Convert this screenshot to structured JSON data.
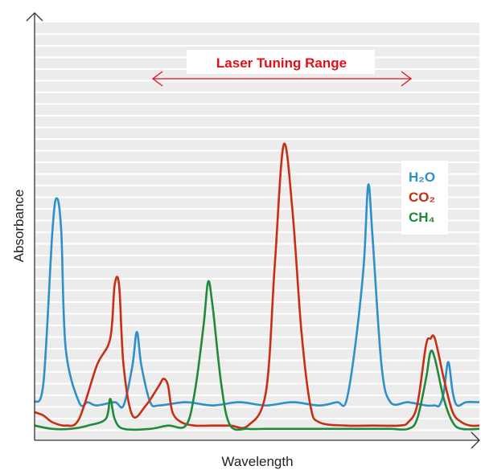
{
  "chart_data": {
    "type": "line",
    "xlabel": "Wavelength",
    "ylabel": "Absorbance",
    "annotation": "Laser Tuning Range",
    "annotation_color": "#e0101b",
    "grid": "horizontal-white-on-gray",
    "x_range": [
      0,
      100
    ],
    "y_range": [
      0,
      100
    ],
    "legend_placement": "right",
    "series": [
      {
        "formula": "H₂O",
        "color": "#2e8fc9",
        "values": [
          [
            0,
            9
          ],
          [
            2,
            15
          ],
          [
            4,
            60
          ],
          [
            5,
            70
          ],
          [
            6,
            60
          ],
          [
            7,
            25
          ],
          [
            10,
            9
          ],
          [
            12,
            9
          ],
          [
            14,
            8
          ],
          [
            18,
            9
          ],
          [
            20,
            8
          ],
          [
            22,
            20
          ],
          [
            23,
            30
          ],
          [
            24,
            20
          ],
          [
            26,
            9
          ],
          [
            28,
            8
          ],
          [
            34,
            9
          ],
          [
            40,
            8
          ],
          [
            46,
            9
          ],
          [
            52,
            8
          ],
          [
            58,
            9
          ],
          [
            64,
            8
          ],
          [
            68,
            9
          ],
          [
            70,
            9
          ],
          [
            72,
            25
          ],
          [
            74,
            50
          ],
          [
            75,
            74
          ],
          [
            76,
            58
          ],
          [
            78,
            20
          ],
          [
            80,
            9
          ],
          [
            84,
            9
          ],
          [
            88,
            8
          ],
          [
            90,
            8
          ],
          [
            91,
            8
          ],
          [
            92,
            12
          ],
          [
            93,
            21
          ],
          [
            94,
            12
          ],
          [
            95,
            8
          ],
          [
            97,
            9
          ],
          [
            100,
            9
          ]
        ]
      },
      {
        "formula": "CO₂",
        "color": "#c82e14",
        "values": [
          [
            0,
            6
          ],
          [
            2,
            5
          ],
          [
            4,
            3
          ],
          [
            7,
            2
          ],
          [
            10,
            4
          ],
          [
            14,
            20
          ],
          [
            17,
            28
          ],
          [
            18,
            44
          ],
          [
            19,
            44
          ],
          [
            20,
            20
          ],
          [
            22,
            5
          ],
          [
            25,
            8
          ],
          [
            28,
            14
          ],
          [
            29,
            16
          ],
          [
            30,
            14
          ],
          [
            31,
            6
          ],
          [
            33,
            3
          ],
          [
            36,
            2
          ],
          [
            40,
            2
          ],
          [
            44,
            2
          ],
          [
            48,
            2
          ],
          [
            52,
            12
          ],
          [
            54,
            50
          ],
          [
            56,
            86
          ],
          [
            58,
            66
          ],
          [
            60,
            30
          ],
          [
            62,
            8
          ],
          [
            64,
            3
          ],
          [
            70,
            2
          ],
          [
            76,
            2
          ],
          [
            82,
            2
          ],
          [
            84,
            3
          ],
          [
            86,
            8
          ],
          [
            88,
            26
          ],
          [
            89,
            28
          ],
          [
            90,
            28
          ],
          [
            92,
            16
          ],
          [
            94,
            6
          ],
          [
            96,
            3
          ],
          [
            98,
            2
          ],
          [
            100,
            2
          ]
        ]
      },
      {
        "formula": "CH₄",
        "color": "#1e8a3a",
        "values": [
          [
            0,
            2
          ],
          [
            4,
            1
          ],
          [
            8,
            1
          ],
          [
            12,
            2
          ],
          [
            16,
            4
          ],
          [
            17,
            10
          ],
          [
            18,
            4
          ],
          [
            20,
            1
          ],
          [
            26,
            1
          ],
          [
            30,
            2
          ],
          [
            34,
            2
          ],
          [
            36,
            12
          ],
          [
            38,
            32
          ],
          [
            39,
            45
          ],
          [
            40,
            38
          ],
          [
            42,
            14
          ],
          [
            44,
            2
          ],
          [
            48,
            1
          ],
          [
            52,
            1
          ],
          [
            60,
            1
          ],
          [
            68,
            1
          ],
          [
            72,
            1
          ],
          [
            76,
            1
          ],
          [
            80,
            1
          ],
          [
            84,
            1
          ],
          [
            86,
            4
          ],
          [
            88,
            16
          ],
          [
            89,
            24
          ],
          [
            90,
            22
          ],
          [
            92,
            10
          ],
          [
            94,
            3
          ],
          [
            96,
            1
          ],
          [
            100,
            1
          ]
        ]
      }
    ]
  }
}
